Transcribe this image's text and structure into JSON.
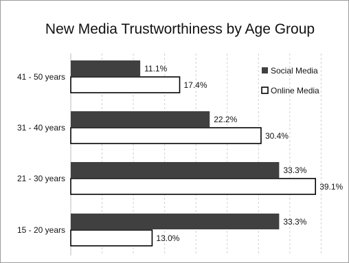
{
  "chart_data": {
    "type": "bar",
    "orientation": "horizontal",
    "title": "New Media Trustworthiness by Age Group",
    "categories": [
      "41 - 50 years",
      "31 - 40 years",
      "21 - 30 years",
      "15 - 20  years"
    ],
    "series": [
      {
        "name": "Social Media",
        "values": [
          11.1,
          22.2,
          33.3,
          33.3
        ],
        "labels": [
          "11.1%",
          "22.2%",
          "33.3%",
          "33.3%"
        ],
        "fill": "#404040",
        "stroke": "#404040"
      },
      {
        "name": "Online Media",
        "values": [
          17.4,
          30.4,
          39.1,
          13.0
        ],
        "labels": [
          "17.4%",
          "30.4%",
          "39.1%",
          "13.0%"
        ],
        "fill": "#ffffff",
        "stroke": "#000000"
      }
    ],
    "xlim": [
      0,
      45
    ],
    "grid": "vertical dashed",
    "legend": "top-right"
  }
}
